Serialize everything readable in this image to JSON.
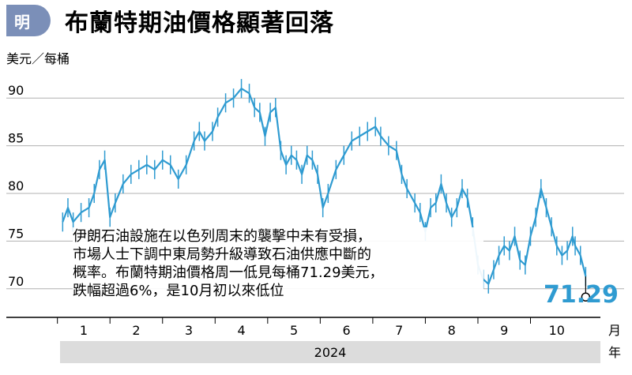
{
  "header": {
    "logo_text": "明",
    "title": "布蘭特期油價格顯著回落"
  },
  "annotation": {
    "lines": [
      "伊朗石油設施在以色列周末的襲擊中未有受損，",
      "市場人士下調中東局勢升級導致石油供應中斷的",
      "概率。布蘭特期油價格周一低見每桶71.29美元，",
      "跌幅超過6%，是10月初以來低位"
    ]
  },
  "chart_data": {
    "type": "line",
    "ylabel": "美元／每桶",
    "ylim": [
      67,
      93
    ],
    "yticks": [
      70,
      75,
      80,
      85,
      90
    ],
    "xlim": [
      0.55,
      10.8
    ],
    "xticks": [
      1,
      2,
      3,
      4,
      5,
      6,
      7,
      8,
      9,
      10
    ],
    "xtick_labels": [
      "1",
      "2",
      "3",
      "4",
      "5",
      "6",
      "7",
      "8",
      "9",
      "10"
    ],
    "x_unit": "月",
    "year_label": "2024",
    "year_unit": "年",
    "series": [
      {
        "values": [
          [
            0.6,
            77.0
          ],
          [
            0.7,
            78.5
          ],
          [
            0.8,
            77.0
          ],
          [
            0.95,
            78.0
          ],
          [
            1.1,
            78.5
          ],
          [
            1.2,
            80.0
          ],
          [
            1.3,
            82.5
          ],
          [
            1.4,
            83.5
          ],
          [
            1.5,
            77.5
          ],
          [
            1.6,
            79.0
          ],
          [
            1.75,
            81.0
          ],
          [
            1.9,
            82.0
          ],
          [
            2.05,
            82.5
          ],
          [
            2.2,
            83.0
          ],
          [
            2.35,
            82.5
          ],
          [
            2.5,
            83.5
          ],
          [
            2.65,
            83.0
          ],
          [
            2.8,
            81.5
          ],
          [
            2.95,
            83.0
          ],
          [
            3.1,
            85.5
          ],
          [
            3.2,
            86.5
          ],
          [
            3.3,
            85.5
          ],
          [
            3.45,
            86.5
          ],
          [
            3.55,
            88.0
          ],
          [
            3.7,
            89.5
          ],
          [
            3.85,
            90.0
          ],
          [
            4.0,
            91.0
          ],
          [
            4.15,
            90.5
          ],
          [
            4.25,
            89.0
          ],
          [
            4.35,
            88.5
          ],
          [
            4.45,
            86.0
          ],
          [
            4.55,
            88.5
          ],
          [
            4.65,
            89.0
          ],
          [
            4.75,
            84.5
          ],
          [
            4.85,
            83.0
          ],
          [
            4.95,
            84.0
          ],
          [
            5.05,
            83.5
          ],
          [
            5.15,
            82.0
          ],
          [
            5.25,
            84.0
          ],
          [
            5.35,
            83.5
          ],
          [
            5.45,
            82.0
          ],
          [
            5.55,
            78.5
          ],
          [
            5.65,
            80.0
          ],
          [
            5.8,
            82.5
          ],
          [
            5.95,
            84.0
          ],
          [
            6.1,
            85.5
          ],
          [
            6.25,
            86.0
          ],
          [
            6.4,
            86.5
          ],
          [
            6.55,
            87.0
          ],
          [
            6.65,
            86.0
          ],
          [
            6.8,
            85.0
          ],
          [
            6.95,
            84.5
          ],
          [
            7.05,
            82.0
          ],
          [
            7.15,
            80.5
          ],
          [
            7.3,
            79.0
          ],
          [
            7.4,
            78.0
          ],
          [
            7.5,
            76.0
          ],
          [
            7.6,
            78.5
          ],
          [
            7.7,
            79.0
          ],
          [
            7.8,
            81.0
          ],
          [
            7.9,
            79.0
          ],
          [
            8.0,
            77.5
          ],
          [
            8.1,
            78.5
          ],
          [
            8.2,
            80.5
          ],
          [
            8.3,
            79.5
          ],
          [
            8.4,
            76.5
          ],
          [
            8.5,
            72.5
          ],
          [
            8.6,
            71.0
          ],
          [
            8.7,
            70.5
          ],
          [
            8.8,
            72.0
          ],
          [
            8.9,
            73.5
          ],
          [
            9.0,
            74.5
          ],
          [
            9.1,
            74.0
          ],
          [
            9.2,
            75.5
          ],
          [
            9.3,
            73.0
          ],
          [
            9.4,
            72.5
          ],
          [
            9.5,
            75.5
          ],
          [
            9.6,
            77.5
          ],
          [
            9.7,
            80.5
          ],
          [
            9.8,
            78.5
          ],
          [
            9.9,
            76.5
          ],
          [
            10.0,
            74.5
          ],
          [
            10.1,
            73.5
          ],
          [
            10.2,
            74.0
          ],
          [
            10.3,
            75.5
          ],
          [
            10.35,
            74.5
          ],
          [
            10.45,
            73.5
          ],
          [
            10.55,
            71.29
          ]
        ]
      }
    ],
    "last_value": "71.29",
    "colors": {
      "line": "#2f9bd1",
      "grid": "#b0b0b0",
      "band": "#dcdcdc",
      "text": "#000000"
    }
  }
}
